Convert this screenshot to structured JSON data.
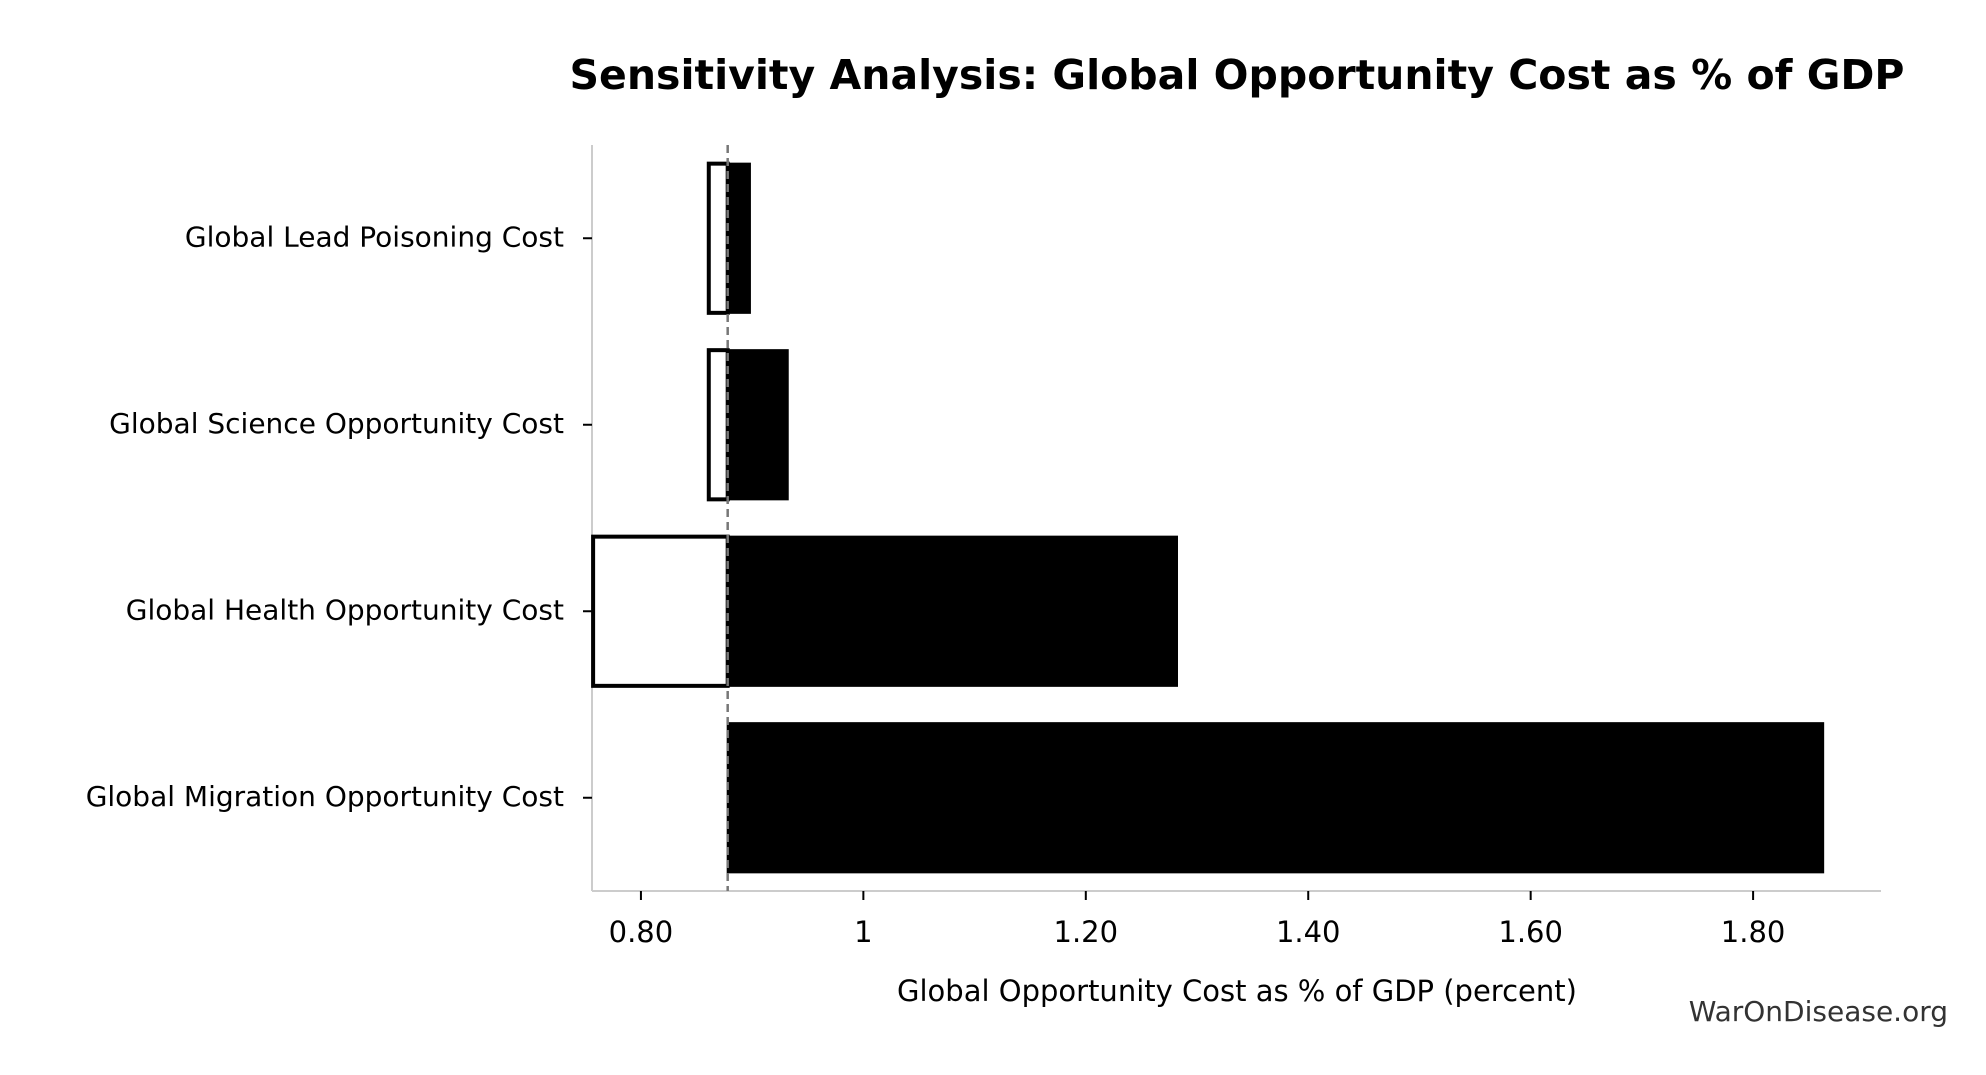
{
  "chart_data": {
    "type": "tornado",
    "title": "Sensitivity Analysis: Global Opportunity Cost as % of GDP",
    "xlabel": "Global Opportunity Cost as % of GDP (percent)",
    "watermark": "WarOnDisease.org",
    "categories": [
      "Global Lead Poisoning Cost",
      "Global Science Opportunity Cost",
      "Global Health Opportunity Cost",
      "Global Migration Opportunity Cost"
    ],
    "baseline": 0.878,
    "low": [
      0.861,
      0.861,
      0.757,
      0.878
    ],
    "high": [
      0.898,
      0.932,
      1.282,
      1.863
    ],
    "low_color": "#ffffff",
    "high_color": "#000000",
    "xlim": [
      0.756,
      1.915
    ],
    "xticks": [
      {
        "value": 0.8,
        "label": "0.80"
      },
      1,
      {
        "value": 1.2,
        "label": "1.20"
      },
      {
        "value": 1.4,
        "label": "1.40"
      },
      {
        "value": 1.6,
        "label": "1.60"
      },
      {
        "value": 1.8,
        "label": "1.80"
      }
    ]
  }
}
